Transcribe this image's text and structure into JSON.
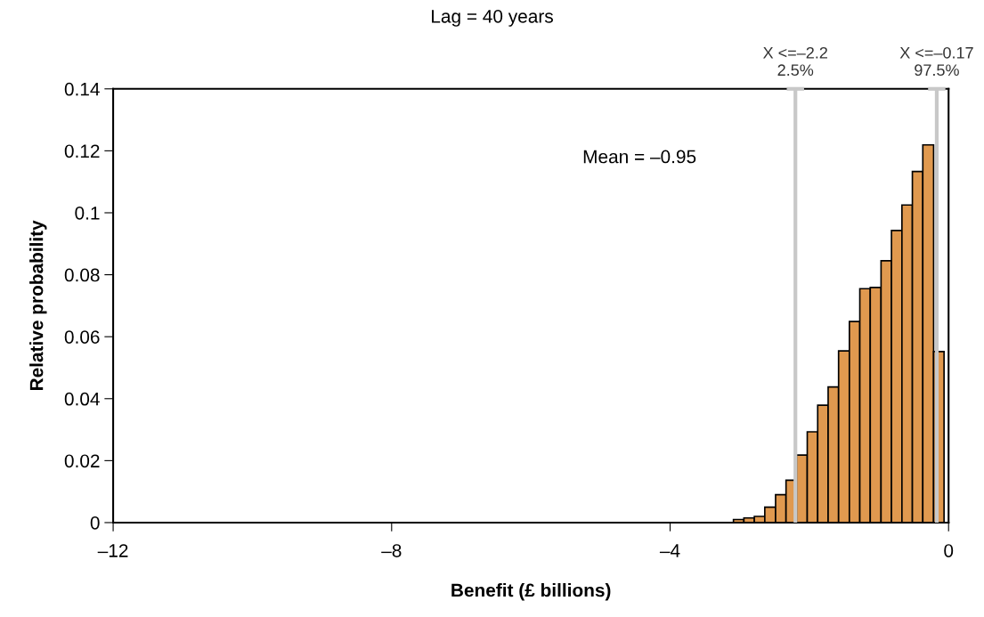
{
  "chart_data": {
    "type": "histogram",
    "title": "Lag = 40 years",
    "xlabel": "Benefit (£ billions)",
    "ylabel": "Relative probability",
    "bins": [
      -3.09,
      -2.94,
      -2.79,
      -2.64,
      -2.485,
      -2.335,
      -2.185,
      -2.03,
      -1.88,
      -1.73,
      -1.58,
      -1.425,
      -1.275,
      -1.125,
      -0.97,
      -0.82,
      -0.67,
      -0.52,
      -0.37,
      -0.215,
      -0.065
    ],
    "values": [
      0.001,
      0.0015,
      0.002,
      0.005,
      0.009,
      0.0137,
      0.0218,
      0.0293,
      0.0379,
      0.0438,
      0.0554,
      0.0649,
      0.0755,
      0.0759,
      0.0845,
      0.0943,
      0.1025,
      0.1133,
      0.1219,
      0.0552
    ],
    "color": "#e0994f",
    "xlim": [
      -12,
      0
    ],
    "xticks": [
      {
        "value": -12,
        "label": "–12"
      },
      {
        "value": -8,
        "label": "–8"
      },
      {
        "value": -4,
        "label": "–4"
      },
      0
    ],
    "ylim": [
      0,
      0.14
    ],
    "yticks": [
      0,
      0.02,
      0.04,
      0.06,
      0.08,
      0.1,
      0.12,
      0.14
    ],
    "ref_lines": [
      {
        "axis": "x",
        "value": -2.2,
        "label": "X <=–2.2\n2.5%",
        "color": "#c8c8c8"
      },
      {
        "axis": "x",
        "value": -0.17,
        "label": "X <=–0.17\n97.5%",
        "color": "#c8c8c8"
      }
    ],
    "annotations": [
      "Mean = –0.95"
    ],
    "grid": false
  }
}
